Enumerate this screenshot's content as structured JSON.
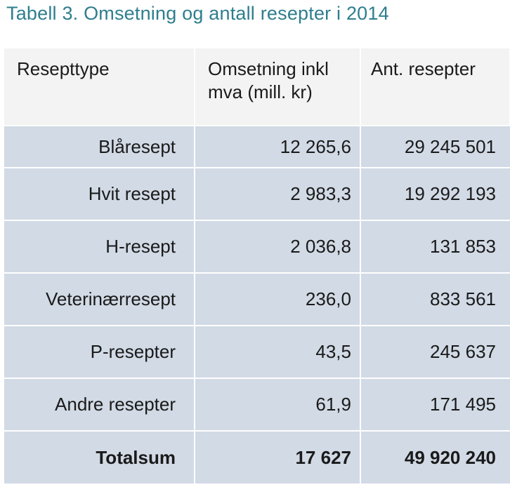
{
  "title": "Tabell 3. Omsetning og antall resepter i 2014",
  "table": {
    "headers": [
      "Resepttype",
      "Omsetning inkl mva (mill. kr)",
      "Ant. resepter"
    ],
    "rows": [
      {
        "type": "Blåresept",
        "omsetning": "12 265,6",
        "antall": "29 245 501"
      },
      {
        "type": "Hvit resept",
        "omsetning": "2 983,3",
        "antall": "19 292 193"
      },
      {
        "type": "H-resept",
        "omsetning": "2 036,8",
        "antall": "131 853"
      },
      {
        "type": "Veterinærresept",
        "omsetning": "236,0",
        "antall": "833 561"
      },
      {
        "type": "P-resepter",
        "omsetning": "43,5",
        "antall": "245 637"
      },
      {
        "type": "Andre resepter",
        "omsetning": "61,9",
        "antall": "171 495"
      }
    ],
    "total": {
      "type": "Totalsum",
      "omsetning": "17 627",
      "antall": "49 920 240"
    }
  },
  "colors": {
    "title": "#2e7e8e",
    "header_bg": "#f3f3f3",
    "row_bg": "#d1dae5",
    "grid": "#ffffff"
  }
}
